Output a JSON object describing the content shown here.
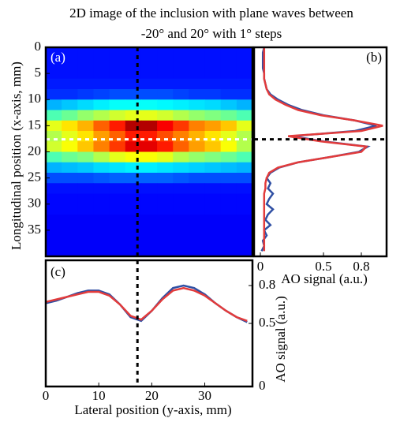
{
  "title": [
    "2D image of the inclusion with plane waves between",
    "-20° and 20° with 1° steps"
  ],
  "cuts": {
    "lateral": 17.3,
    "longitudinal": 17.6,
    "colors": [
      "#000000",
      "#ffffff"
    ]
  },
  "chart_data": [
    {
      "type": "heatmap",
      "label": "(a)",
      "ylabel": "Longitudinal position (x-axis, mm)",
      "colormap": "jet",
      "zlim": [
        0,
        1
      ],
      "xlim": [
        0,
        39
      ],
      "ylim": [
        0,
        40
      ],
      "yticks": [
        0,
        5,
        10,
        15,
        20,
        25,
        30,
        35
      ],
      "x_edges": [
        0,
        3,
        6,
        9,
        12,
        15,
        18,
        21,
        24,
        27,
        30,
        33,
        36,
        39
      ],
      "y_edges": [
        0,
        2,
        4,
        6,
        8,
        10,
        12,
        14,
        16,
        18,
        20,
        22,
        24,
        26,
        28,
        30,
        32,
        34,
        36,
        38,
        40
      ],
      "z": [
        [
          0.14,
          0.14,
          0.14,
          0.14,
          0.14,
          0.14,
          0.14,
          0.14,
          0.14,
          0.14,
          0.14,
          0.14,
          0.14
        ],
        [
          0.14,
          0.14,
          0.14,
          0.14,
          0.14,
          0.14,
          0.14,
          0.14,
          0.14,
          0.14,
          0.14,
          0.14,
          0.14
        ],
        [
          0.14,
          0.14,
          0.14,
          0.14,
          0.14,
          0.14,
          0.14,
          0.14,
          0.14,
          0.14,
          0.14,
          0.14,
          0.14
        ],
        [
          0.15,
          0.15,
          0.15,
          0.15,
          0.15,
          0.15,
          0.15,
          0.15,
          0.15,
          0.15,
          0.15,
          0.15,
          0.15
        ],
        [
          0.17,
          0.17,
          0.18,
          0.19,
          0.2,
          0.2,
          0.2,
          0.2,
          0.19,
          0.18,
          0.18,
          0.17,
          0.17
        ],
        [
          0.3,
          0.32,
          0.34,
          0.36,
          0.38,
          0.38,
          0.38,
          0.37,
          0.36,
          0.35,
          0.34,
          0.32,
          0.3
        ],
        [
          0.45,
          0.48,
          0.52,
          0.55,
          0.58,
          0.6,
          0.6,
          0.58,
          0.55,
          0.52,
          0.5,
          0.48,
          0.45
        ],
        [
          0.6,
          0.65,
          0.7,
          0.78,
          0.85,
          0.95,
          0.95,
          0.88,
          0.82,
          0.75,
          0.72,
          0.68,
          0.6
        ],
        [
          0.55,
          0.6,
          0.65,
          0.72,
          0.78,
          0.85,
          0.85,
          0.8,
          0.75,
          0.7,
          0.65,
          0.6,
          0.55
        ],
        [
          0.58,
          0.62,
          0.68,
          0.75,
          0.82,
          0.9,
          0.9,
          0.85,
          0.78,
          0.72,
          0.68,
          0.62,
          0.55
        ],
        [
          0.45,
          0.48,
          0.5,
          0.55,
          0.6,
          0.62,
          0.62,
          0.6,
          0.55,
          0.52,
          0.5,
          0.48,
          0.45
        ],
        [
          0.3,
          0.31,
          0.32,
          0.34,
          0.35,
          0.36,
          0.36,
          0.35,
          0.34,
          0.33,
          0.32,
          0.31,
          0.3
        ],
        [
          0.2,
          0.2,
          0.2,
          0.21,
          0.22,
          0.22,
          0.22,
          0.22,
          0.21,
          0.2,
          0.2,
          0.2,
          0.2
        ],
        [
          0.14,
          0.14,
          0.14,
          0.14,
          0.14,
          0.14,
          0.14,
          0.14,
          0.14,
          0.14,
          0.14,
          0.14,
          0.14
        ],
        [
          0.13,
          0.13,
          0.13,
          0.13,
          0.13,
          0.13,
          0.13,
          0.13,
          0.13,
          0.13,
          0.13,
          0.13,
          0.13
        ],
        [
          0.13,
          0.13,
          0.13,
          0.13,
          0.13,
          0.13,
          0.13,
          0.13,
          0.13,
          0.13,
          0.13,
          0.13,
          0.13
        ],
        [
          0.12,
          0.12,
          0.12,
          0.12,
          0.12,
          0.12,
          0.12,
          0.12,
          0.12,
          0.12,
          0.12,
          0.12,
          0.12
        ],
        [
          0.12,
          0.12,
          0.12,
          0.12,
          0.12,
          0.12,
          0.12,
          0.12,
          0.12,
          0.12,
          0.12,
          0.12,
          0.12
        ],
        [
          0.12,
          0.12,
          0.12,
          0.12,
          0.12,
          0.12,
          0.12,
          0.12,
          0.12,
          0.12,
          0.12,
          0.12,
          0.12
        ],
        [
          0.12,
          0.12,
          0.12,
          0.12,
          0.12,
          0.12,
          0.12,
          0.12,
          0.12,
          0.12,
          0.12,
          0.12,
          0.12
        ]
      ]
    },
    {
      "type": "profile-vertical",
      "label": "(b)",
      "xlabel": "AO signal (a.u.)",
      "xlim": [
        -0.05,
        1.0
      ],
      "xticks": [
        0,
        0.5,
        0.8
      ],
      "ylim": [
        0,
        40
      ],
      "y": [
        0,
        1,
        2,
        3,
        4,
        5,
        6,
        7,
        8,
        9,
        10,
        11,
        12,
        13,
        14,
        15,
        16,
        17,
        18,
        19,
        20,
        21,
        22,
        23,
        24,
        25,
        26,
        27,
        28,
        29,
        30,
        31,
        32,
        33,
        34,
        35,
        36,
        37,
        38,
        39
      ],
      "series": [
        {
          "color": "#2f4fa3",
          "values": [
            0.03,
            0.02,
            0.02,
            0.02,
            0.02,
            0.03,
            0.03,
            0.04,
            0.05,
            0.08,
            0.14,
            0.22,
            0.33,
            0.5,
            0.75,
            0.92,
            0.75,
            0.25,
            0.5,
            0.85,
            0.78,
            0.55,
            0.3,
            0.15,
            0.08,
            0.05,
            0.08,
            0.06,
            0.1,
            0.07,
            0.05,
            0.1,
            0.06,
            0.04,
            0.08,
            0.03,
            0.05,
            0.02,
            0.03,
            0.01
          ]
        },
        {
          "color": "#e23b3b",
          "values": [
            0.03,
            0.03,
            0.03,
            0.03,
            0.03,
            0.03,
            0.03,
            0.04,
            0.05,
            0.07,
            0.12,
            0.2,
            0.3,
            0.48,
            0.75,
            0.97,
            0.8,
            0.22,
            0.48,
            0.84,
            0.8,
            0.55,
            0.3,
            0.14,
            0.07,
            0.05,
            0.04,
            0.04,
            0.03,
            0.03,
            0.03,
            0.03,
            0.03,
            0.03,
            0.03,
            0.03,
            0.03,
            0.03,
            0.03,
            0.03
          ]
        }
      ]
    },
    {
      "type": "line",
      "label": "(c)",
      "xlabel": "Lateral position (y-axis, mm)",
      "ylabel": "AO signal (a.u.)",
      "xlim": [
        0,
        39
      ],
      "xticks": [
        0,
        10,
        20,
        30
      ],
      "ylim": [
        0,
        1
      ],
      "yticks": [
        0,
        0.5,
        0.8
      ],
      "x": [
        0,
        2,
        4,
        6,
        8,
        10,
        12,
        14,
        16,
        18,
        20,
        22,
        24,
        26,
        28,
        30,
        32,
        34,
        36,
        38
      ],
      "series": [
        {
          "color": "#2f4fa3",
          "values": [
            0.66,
            0.68,
            0.71,
            0.74,
            0.76,
            0.76,
            0.73,
            0.65,
            0.55,
            0.52,
            0.6,
            0.7,
            0.78,
            0.8,
            0.78,
            0.73,
            0.66,
            0.6,
            0.55,
            0.51
          ]
        },
        {
          "color": "#e23b3b",
          "values": [
            0.67,
            0.69,
            0.71,
            0.73,
            0.75,
            0.75,
            0.72,
            0.65,
            0.56,
            0.53,
            0.6,
            0.69,
            0.76,
            0.78,
            0.76,
            0.72,
            0.66,
            0.6,
            0.55,
            0.52
          ]
        }
      ]
    }
  ]
}
